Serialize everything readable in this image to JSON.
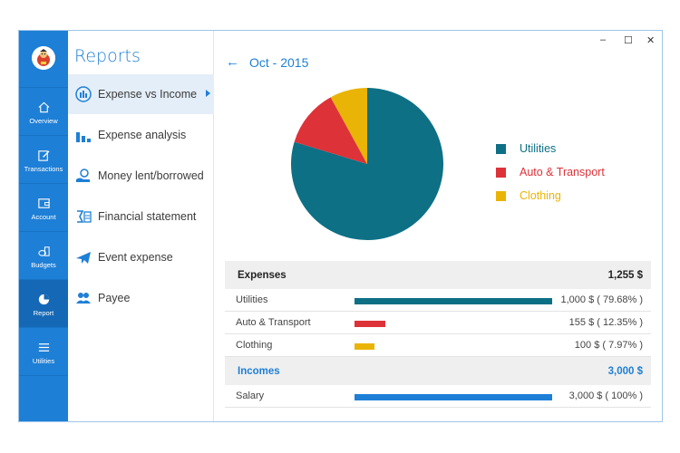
{
  "window_controls": {
    "minimize": "–",
    "maximize": "☐",
    "close": "✕"
  },
  "rail": {
    "items": [
      {
        "label": "Overview",
        "icon": "home-icon"
      },
      {
        "label": "Transactions",
        "icon": "edit-icon"
      },
      {
        "label": "Account",
        "icon": "wallet-icon"
      },
      {
        "label": "Budgets",
        "icon": "coins-icon"
      },
      {
        "label": "Report",
        "icon": "pie-chart-icon",
        "active": true
      },
      {
        "label": "Utilities",
        "icon": "menu-icon"
      }
    ]
  },
  "menu": {
    "title": "Reports",
    "items": [
      {
        "label": "Expense vs Income",
        "icon": "gauge-icon",
        "active": true
      },
      {
        "label": "Expense analysis",
        "icon": "bar-chart-icon"
      },
      {
        "label": "Money lent/borrowed",
        "icon": "hand-money-icon"
      },
      {
        "label": "Financial statement",
        "icon": "statement-icon"
      },
      {
        "label": "Event expense",
        "icon": "plane-icon"
      },
      {
        "label": "Payee",
        "icon": "people-icon"
      }
    ]
  },
  "header": {
    "back": "←",
    "period": "Oct - 2015"
  },
  "chart_data": {
    "type": "pie",
    "categories": [
      "Utilities",
      "Auto & Transport",
      "Clothing"
    ],
    "values": [
      79.68,
      12.35,
      7.97
    ],
    "colors": [
      "#0e7085",
      "#dd3238",
      "#eab406"
    ],
    "legend_position": "right"
  },
  "table": {
    "expenses": {
      "label": "Expenses",
      "total": "1,255 $",
      "rows": [
        {
          "label": "Utilities",
          "value": "1,000 $ ( 79.68% )",
          "fraction": 1.0,
          "color": "#0e7085"
        },
        {
          "label": "Auto & Transport",
          "value": "155 $ ( 12.35% )",
          "fraction": 0.155,
          "color": "#dd3238"
        },
        {
          "label": "Clothing",
          "value": "100 $ ( 7.97% )",
          "fraction": 0.1,
          "color": "#eab406"
        }
      ]
    },
    "incomes": {
      "label": "Incomes",
      "total": "3,000 $",
      "rows": [
        {
          "label": "Salary",
          "value": "3,000 $ ( 100% )",
          "fraction": 1.0,
          "color": "#1e7fd6"
        }
      ]
    }
  }
}
